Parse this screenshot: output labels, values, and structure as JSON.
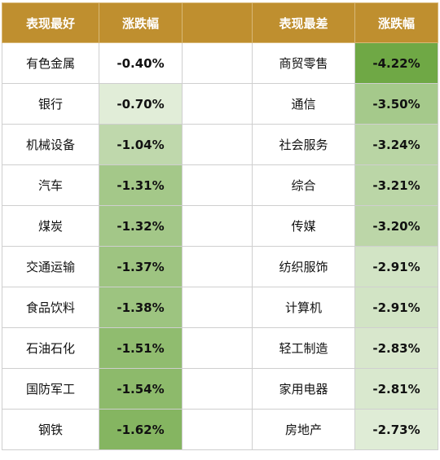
{
  "headers": {
    "best": "表现最好",
    "change_left": "涨跌幅",
    "worst": "表现最差",
    "change_right": "涨跌幅"
  },
  "colors": {
    "header_bg": "#bf8f2f",
    "scale_light": "#ffffff",
    "scale_dark": "#6fa845"
  },
  "chart_data": {
    "type": "table",
    "columns": [
      "表现最好",
      "涨跌幅",
      "表现最差",
      "涨跌幅"
    ],
    "best": [
      {
        "name": "有色金属",
        "change": "-0.40%",
        "value": -0.4
      },
      {
        "name": "银行",
        "change": "-0.70%",
        "value": -0.7
      },
      {
        "name": "机械设备",
        "change": "-1.04%",
        "value": -1.04
      },
      {
        "name": "汽车",
        "change": "-1.31%",
        "value": -1.31
      },
      {
        "name": "煤炭",
        "change": "-1.32%",
        "value": -1.32
      },
      {
        "name": "交通运输",
        "change": "-1.37%",
        "value": -1.37
      },
      {
        "name": "食品饮料",
        "change": "-1.38%",
        "value": -1.38
      },
      {
        "name": "石油石化",
        "change": "-1.51%",
        "value": -1.51
      },
      {
        "name": "国防军工",
        "change": "-1.54%",
        "value": -1.54
      },
      {
        "name": "钢铁",
        "change": "-1.62%",
        "value": -1.62
      }
    ],
    "worst": [
      {
        "name": "商贸零售",
        "change": "-4.22%",
        "value": -4.22
      },
      {
        "name": "通信",
        "change": "-3.50%",
        "value": -3.5
      },
      {
        "name": "社会服务",
        "change": "-3.24%",
        "value": -3.24
      },
      {
        "name": "综合",
        "change": "-3.21%",
        "value": -3.21
      },
      {
        "name": "传媒",
        "change": "-3.20%",
        "value": -3.2
      },
      {
        "name": "纺织服饰",
        "change": "-2.91%",
        "value": -2.91
      },
      {
        "name": "计算机",
        "change": "-2.91%",
        "value": -2.91
      },
      {
        "name": "轻工制造",
        "change": "-2.83%",
        "value": -2.83
      },
      {
        "name": "家用电器",
        "change": "-2.81%",
        "value": -2.81
      },
      {
        "name": "房地产",
        "change": "-2.73%",
        "value": -2.73
      }
    ]
  }
}
